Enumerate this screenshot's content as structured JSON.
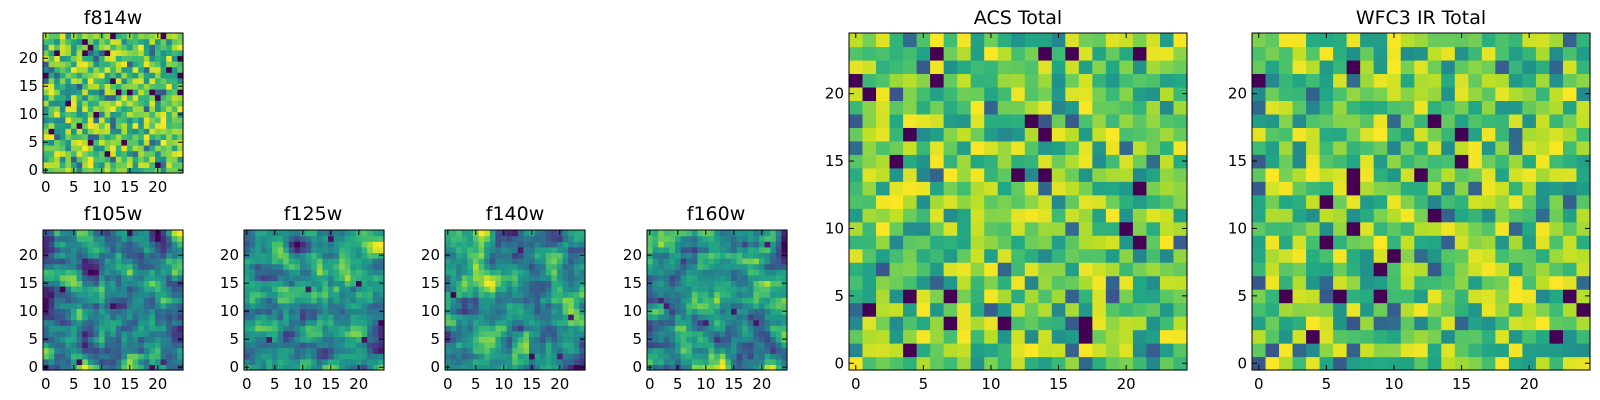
{
  "chart_data": [
    {
      "type": "heatmap",
      "title": "f814w",
      "xticks": [
        "0",
        "5",
        "10",
        "15",
        "20"
      ],
      "yticks": [
        "0",
        "5",
        "10",
        "15",
        "20"
      ],
      "xlim": [
        -0.5,
        24.5
      ],
      "ylim": [
        -0.5,
        24.5
      ],
      "grid_size": 25,
      "colormap": "viridis",
      "seed": 11,
      "style": "pixel"
    },
    {
      "type": "heatmap",
      "title": "f105w",
      "xticks": [
        "0",
        "5",
        "10",
        "15",
        "20"
      ],
      "yticks": [
        "0",
        "5",
        "10",
        "15",
        "20"
      ],
      "xlim": [
        -0.5,
        24.5
      ],
      "ylim": [
        -0.5,
        24.5
      ],
      "grid_size": 25,
      "colormap": "viridis",
      "seed": 23,
      "style": "smooth"
    },
    {
      "type": "heatmap",
      "title": "f125w",
      "xticks": [
        "0",
        "5",
        "10",
        "15",
        "20"
      ],
      "yticks": [
        "0",
        "5",
        "10",
        "15",
        "20"
      ],
      "xlim": [
        -0.5,
        24.5
      ],
      "ylim": [
        -0.5,
        24.5
      ],
      "grid_size": 25,
      "colormap": "viridis",
      "seed": 37,
      "style": "smooth"
    },
    {
      "type": "heatmap",
      "title": "f140w",
      "xticks": [
        "0",
        "5",
        "10",
        "15",
        "20"
      ],
      "yticks": [
        "0",
        "5",
        "10",
        "15",
        "20"
      ],
      "xlim": [
        -0.5,
        24.5
      ],
      "ylim": [
        -0.5,
        24.5
      ],
      "grid_size": 25,
      "colormap": "viridis",
      "seed": 41,
      "style": "smooth"
    },
    {
      "type": "heatmap",
      "title": "f160w",
      "xticks": [
        "0",
        "5",
        "10",
        "15",
        "20"
      ],
      "yticks": [
        "0",
        "5",
        "10",
        "15",
        "20"
      ],
      "xlim": [
        -0.5,
        24.5
      ],
      "ylim": [
        -0.5,
        24.5
      ],
      "grid_size": 25,
      "colormap": "viridis",
      "seed": 53,
      "style": "smooth"
    },
    {
      "type": "heatmap",
      "title": "ACS Total",
      "xticks": [
        "0",
        "5",
        "10",
        "15",
        "20"
      ],
      "yticks": [
        "0",
        "5",
        "10",
        "15",
        "20"
      ],
      "xlim": [
        -0.5,
        24.5
      ],
      "ylim": [
        -0.5,
        24.5
      ],
      "grid_size": 25,
      "colormap": "viridis",
      "seed": 67,
      "style": "pixel"
    },
    {
      "type": "heatmap",
      "title": "WFC3 IR Total",
      "xticks": [
        "0",
        "5",
        "10",
        "15",
        "20"
      ],
      "yticks": [
        "0",
        "5",
        "10",
        "15",
        "20"
      ],
      "xlim": [
        -0.5,
        24.5
      ],
      "ylim": [
        -0.5,
        24.5
      ],
      "grid_size": 25,
      "colormap": "viridis",
      "seed": 79,
      "style": "pixel"
    }
  ]
}
